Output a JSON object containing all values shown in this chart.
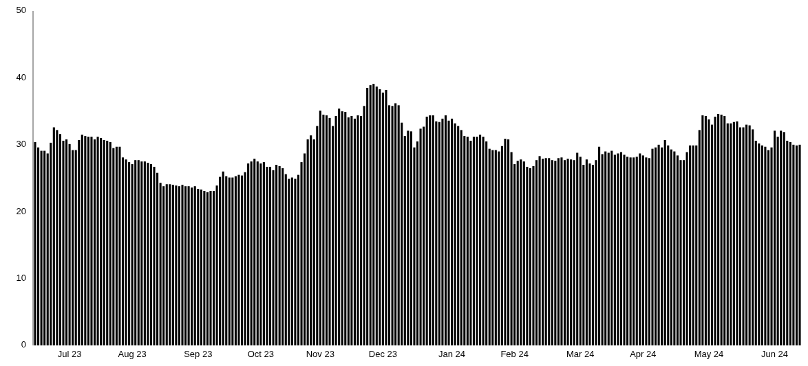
{
  "chart_data": {
    "type": "bar",
    "color": "#000000",
    "ylim": [
      0,
      50
    ],
    "yticks": [
      0,
      10,
      20,
      30,
      40,
      50
    ],
    "categories": [
      null,
      null,
      null,
      null,
      null,
      null,
      null,
      null,
      null,
      null,
      null,
      "Jul 23",
      null,
      null,
      null,
      null,
      null,
      null,
      null,
      null,
      null,
      null,
      null,
      null,
      null,
      null,
      null,
      null,
      null,
      null,
      null,
      "Aug 23",
      null,
      null,
      null,
      null,
      null,
      null,
      null,
      null,
      null,
      null,
      null,
      null,
      null,
      null,
      null,
      null,
      null,
      null,
      null,
      null,
      "Sep 23",
      null,
      null,
      null,
      null,
      null,
      null,
      null,
      null,
      null,
      null,
      null,
      null,
      null,
      null,
      null,
      null,
      null,
      null,
      null,
      "Oct 23",
      null,
      null,
      null,
      null,
      null,
      null,
      null,
      null,
      null,
      null,
      null,
      null,
      null,
      null,
      null,
      null,
      null,
      null,
      "Nov 23",
      null,
      null,
      null,
      null,
      null,
      null,
      null,
      null,
      null,
      null,
      null,
      null,
      null,
      null,
      null,
      null,
      null,
      null,
      null,
      "Dec 23",
      null,
      null,
      null,
      null,
      null,
      null,
      null,
      null,
      null,
      null,
      null,
      null,
      null,
      null,
      null,
      null,
      null,
      null,
      null,
      null,
      null,
      "Jan 24",
      null,
      null,
      null,
      null,
      null,
      null,
      null,
      null,
      null,
      null,
      null,
      null,
      null,
      null,
      null,
      null,
      null,
      null,
      null,
      "Feb 24",
      null,
      null,
      null,
      null,
      null,
      null,
      null,
      null,
      null,
      null,
      null,
      null,
      null,
      null,
      null,
      null,
      null,
      null,
      null,
      null,
      "Mar 24",
      null,
      null,
      null,
      null,
      null,
      null,
      null,
      null,
      null,
      null,
      null,
      null,
      null,
      null,
      null,
      null,
      null,
      null,
      null,
      "Apr 24",
      null,
      null,
      null,
      null,
      null,
      null,
      null,
      null,
      null,
      null,
      null,
      null,
      null,
      null,
      null,
      null,
      null,
      null,
      null,
      null,
      "May 24",
      null,
      null,
      null,
      null,
      null,
      null,
      null,
      null,
      null,
      null,
      null,
      null,
      null,
      null,
      null,
      null,
      null,
      null,
      null,
      null,
      "Jun 24",
      null,
      null,
      null,
      null,
      null,
      null,
      null,
      null
    ],
    "values": [
      30.4,
      29.6,
      29.1,
      29.1,
      28.7,
      30.3,
      32.6,
      32.2,
      31.6,
      30.6,
      30.8,
      30.1,
      29.2,
      29.2,
      30.7,
      31.5,
      31.3,
      31.2,
      31.2,
      30.8,
      31.2,
      31.0,
      30.7,
      30.6,
      30.4,
      29.5,
      29.7,
      29.7,
      28.1,
      27.8,
      27.4,
      27.1,
      27.7,
      27.7,
      27.5,
      27.5,
      27.3,
      27.1,
      26.7,
      25.8,
      24.3,
      23.8,
      24.1,
      24.1,
      24.0,
      23.9,
      23.8,
      24.0,
      23.8,
      23.8,
      23.6,
      23.8,
      23.4,
      23.3,
      23.1,
      22.9,
      23.1,
      23.1,
      23.9,
      25.2,
      26.0,
      25.3,
      25.1,
      25.1,
      25.3,
      25.5,
      25.4,
      25.9,
      27.2,
      27.5,
      27.9,
      27.5,
      27.2,
      27.4,
      26.7,
      26.7,
      26.2,
      27.0,
      26.8,
      26.5,
      25.6,
      24.9,
      25.1,
      24.9,
      25.5,
      27.4,
      28.7,
      30.8,
      31.4,
      30.8,
      32.8,
      35.1,
      34.5,
      34.4,
      34.0,
      32.8,
      34.3,
      35.4,
      35.0,
      34.9,
      34.1,
      34.3,
      33.9,
      34.4,
      34.3,
      35.8,
      38.5,
      38.9,
      39.1,
      38.7,
      38.3,
      37.8,
      38.2,
      35.9,
      35.8,
      36.2,
      35.9,
      33.3,
      31.3,
      32.1,
      32.0,
      29.6,
      30.5,
      32.4,
      32.7,
      34.2,
      34.4,
      34.4,
      33.5,
      33.4,
      33.9,
      34.4,
      33.6,
      33.9,
      33.2,
      32.8,
      32.2,
      31.3,
      31.2,
      30.6,
      31.2,
      31.2,
      31.5,
      31.2,
      30.5,
      29.4,
      29.2,
      29.2,
      29.0,
      29.8,
      30.9,
      30.8,
      28.9,
      27.1,
      27.6,
      27.8,
      27.5,
      26.7,
      26.5,
      26.8,
      27.7,
      28.3,
      27.9,
      28.0,
      28.0,
      27.7,
      27.6,
      28.0,
      28.1,
      27.7,
      27.9,
      27.8,
      27.7,
      28.8,
      28.2,
      27.0,
      27.8,
      27.2,
      27.0,
      27.7,
      29.7,
      28.6,
      29.0,
      28.8,
      29.1,
      28.5,
      28.7,
      28.9,
      28.5,
      28.2,
      28.1,
      28.1,
      28.2,
      28.7,
      28.4,
      28.1,
      28.0,
      29.4,
      29.6,
      30.0,
      29.6,
      30.7,
      29.9,
      29.3,
      29.0,
      28.4,
      27.7,
      27.7,
      28.9,
      29.9,
      29.9,
      29.9,
      32.2,
      34.4,
      34.3,
      33.8,
      33.0,
      34.2,
      34.6,
      34.5,
      34.3,
      33.2,
      33.2,
      33.4,
      33.5,
      32.6,
      32.6,
      33.0,
      32.9,
      32.3,
      30.6,
      30.2,
      29.9,
      29.7,
      29.2,
      29.6,
      32.1,
      31.2,
      32.1,
      31.9,
      30.6,
      30.4,
      30.0,
      29.9,
      30.0
    ]
  }
}
